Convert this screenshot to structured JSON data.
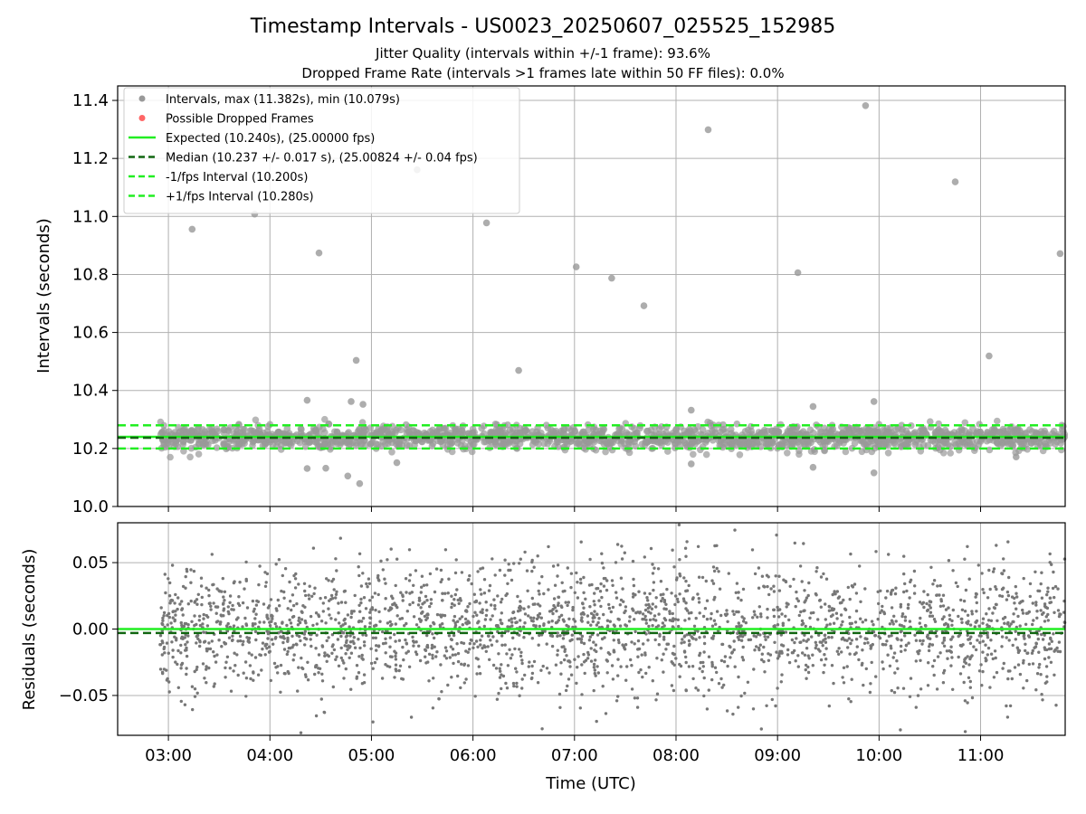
{
  "chart_data": [
    {
      "type": "scatter",
      "panel": "intervals",
      "title": "Timestamp Intervals - US0023_20250607_025525_152985",
      "subtitle_lines": [
        "Jitter Quality (intervals within +/-1 frame): 93.6%",
        "Dropped Frame Rate (intervals >1 frames late within 50 FF files): 0.0%"
      ],
      "xlabel": "",
      "ylabel": "Intervals (seconds)",
      "xlim": [
        "02:30",
        "11:50"
      ],
      "ylim": [
        10.0,
        11.45
      ],
      "grid": true,
      "legend_position": "upper-left",
      "x_ticks": [
        "03:00",
        "04:00",
        "05:00",
        "06:00",
        "07:00",
        "08:00",
        "09:00",
        "10:00",
        "11:00"
      ],
      "y_ticks": [
        "10.0",
        "10.2",
        "10.4",
        "10.6",
        "10.8",
        "11.0",
        "11.2",
        "11.4"
      ],
      "legend": [
        {
          "label": "Intervals, max (11.382s), min (10.079s)",
          "marker": "dot",
          "color": "#999999"
        },
        {
          "label": "Possible Dropped Frames",
          "marker": "dot",
          "color": "#ff6666"
        },
        {
          "label": "Expected (10.240s), (25.00000 fps)",
          "marker": "solid-line",
          "color": "#22ee22"
        },
        {
          "label": "Median (10.237 +/- 0.017 s), (25.00824 +/- 0.04 fps)",
          "marker": "dashed-line",
          "color": "#116611"
        },
        {
          "label": "-1/fps Interval (10.200s)",
          "marker": "dashed-line",
          "color": "#22ee22"
        },
        {
          "label": "+1/fps Interval (10.280s)",
          "marker": "dashed-line",
          "color": "#22ee22"
        }
      ],
      "reference_lines": [
        {
          "name": "Expected",
          "y": 10.24,
          "style": "solid",
          "color": "#22ee22"
        },
        {
          "name": "Median",
          "y": 10.237,
          "style": "dashed",
          "color": "#116611"
        },
        {
          "name": "-1/fps Interval",
          "y": 10.2,
          "style": "dashed",
          "color": "#22ee22"
        },
        {
          "name": "+1/fps Interval",
          "y": 10.28,
          "style": "dashed",
          "color": "#22ee22"
        }
      ],
      "series": [
        {
          "name": "Intervals",
          "color": "#999999",
          "band": {
            "time_start": "02:55",
            "time_end": "11:50",
            "center": 10.237,
            "spread": 0.02
          },
          "outliers": [
            {
              "x": "03:14",
              "y": 10.956
            },
            {
              "x": "03:51",
              "y": 11.008
            },
            {
              "x": "04:29",
              "y": 10.874
            },
            {
              "x": "04:51",
              "y": 10.504
            },
            {
              "x": "04:53",
              "y": 10.079
            },
            {
              "x": "05:27",
              "y": 11.161
            },
            {
              "x": "06:08",
              "y": 10.978
            },
            {
              "x": "06:27",
              "y": 10.469
            },
            {
              "x": "07:01",
              "y": 10.826
            },
            {
              "x": "07:22",
              "y": 10.787
            },
            {
              "x": "07:41",
              "y": 10.692
            },
            {
              "x": "08:19",
              "y": 11.299
            },
            {
              "x": "09:12",
              "y": 10.806
            },
            {
              "x": "09:52",
              "y": 11.382
            },
            {
              "x": "10:45",
              "y": 11.119
            },
            {
              "x": "11:05",
              "y": 10.519
            },
            {
              "x": "11:47",
              "y": 10.872
            },
            {
              "x": "04:22",
              "y": 10.366
            },
            {
              "x": "04:48",
              "y": 10.362
            },
            {
              "x": "04:55",
              "y": 10.352
            },
            {
              "x": "09:21",
              "y": 10.345
            },
            {
              "x": "09:57",
              "y": 10.362
            },
            {
              "x": "08:09",
              "y": 10.332
            },
            {
              "x": "04:22",
              "y": 10.131
            },
            {
              "x": "04:33",
              "y": 10.132
            },
            {
              "x": "04:46",
              "y": 10.105
            },
            {
              "x": "05:15",
              "y": 10.151
            },
            {
              "x": "08:09",
              "y": 10.147
            },
            {
              "x": "09:21",
              "y": 10.135
            },
            {
              "x": "09:57",
              "y": 10.116
            },
            {
              "x": "11:21",
              "y": 10.171
            }
          ]
        },
        {
          "name": "Possible Dropped Frames",
          "color": "#ff6666",
          "points": []
        }
      ]
    },
    {
      "type": "scatter",
      "panel": "residuals",
      "xlabel": "Time (UTC)",
      "ylabel": "Residuals (seconds)",
      "xlim": [
        "02:30",
        "11:50"
      ],
      "ylim": [
        -0.08,
        0.08
      ],
      "grid": true,
      "x_ticks": [
        "03:00",
        "04:00",
        "05:00",
        "06:00",
        "07:00",
        "08:00",
        "09:00",
        "10:00",
        "11:00"
      ],
      "y_ticks": [
        "0.05",
        "0.00",
        "−0.05"
      ],
      "y_tick_values": [
        0.05,
        0.0,
        -0.05
      ],
      "reference_lines": [
        {
          "name": "Expected",
          "y": 0.0,
          "style": "solid",
          "color": "#22ee22"
        },
        {
          "name": "Median",
          "y": -0.003,
          "style": "dashed",
          "color": "#116611"
        }
      ],
      "series": [
        {
          "name": "Residuals",
          "color": "#777777",
          "time_start": "02:55",
          "time_end": "11:50",
          "spread": 0.025
        }
      ]
    }
  ]
}
